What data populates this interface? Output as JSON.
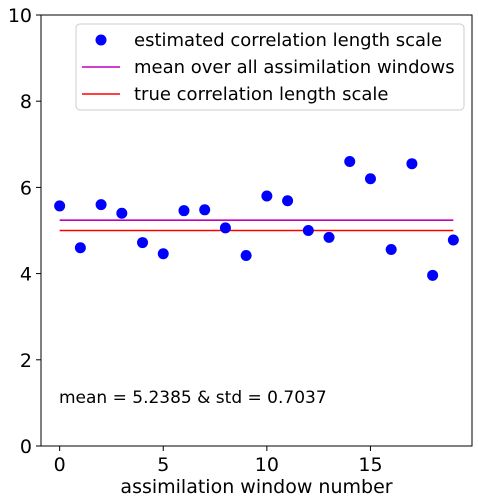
{
  "chart_data": {
    "type": "scatter",
    "xlabel": "assimilation window number",
    "ylabel": "",
    "xlim": [
      -0.9,
      19.9
    ],
    "ylim": [
      0,
      10
    ],
    "xticks": [
      0,
      5,
      10,
      15
    ],
    "yticks": [
      0,
      2,
      4,
      6,
      8,
      10
    ],
    "grid": false,
    "legend_position": "top-right",
    "series": [
      {
        "name": "estimated correlation length scale",
        "kind": "markers",
        "color": "#0000ff",
        "x": [
          0,
          1,
          2,
          3,
          4,
          5,
          6,
          7,
          8,
          9,
          10,
          11,
          12,
          13,
          14,
          15,
          16,
          17,
          18,
          19
        ],
        "y": [
          5.57,
          4.6,
          5.6,
          5.4,
          4.72,
          4.46,
          5.46,
          5.48,
          5.06,
          4.42,
          5.8,
          5.69,
          5.0,
          4.84,
          6.6,
          6.2,
          4.56,
          6.55,
          3.96,
          4.78
        ]
      },
      {
        "name": "mean over all assimilation windows",
        "kind": "line",
        "color": "#bf00bf",
        "x": [
          0,
          19
        ],
        "y": [
          5.2385,
          5.2385
        ]
      },
      {
        "name": "true correlation length scale",
        "kind": "line",
        "color": "#ff0000",
        "x": [
          0,
          19
        ],
        "y": [
          5.0,
          5.0
        ]
      }
    ],
    "annotation": "mean = 5.2385 & std = 0.7037"
  }
}
